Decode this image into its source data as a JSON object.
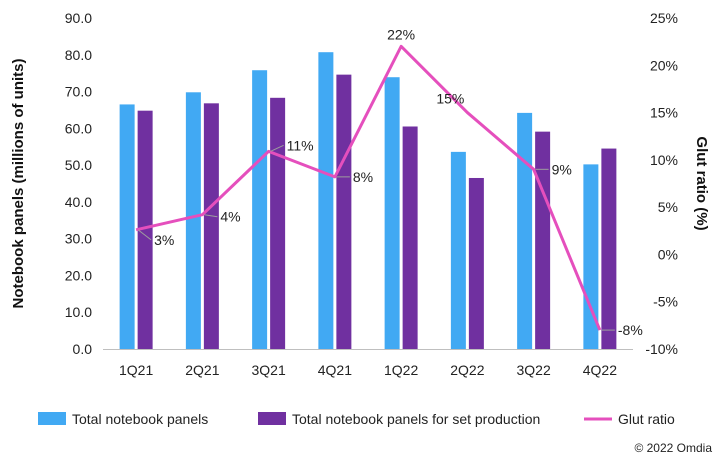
{
  "chart_data": {
    "type": "bar",
    "categories": [
      "1Q21",
      "2Q21",
      "3Q21",
      "4Q21",
      "1Q22",
      "2Q22",
      "3Q22",
      "4Q22"
    ],
    "series": [
      {
        "name": "Total notebook panels",
        "kind": "bar",
        "axis": "left",
        "color": "#41a9f3",
        "values": [
          66.5,
          69.8,
          75.8,
          80.7,
          73.9,
          53.6,
          64.2,
          50.2
        ]
      },
      {
        "name": "Total notebook panels for set production",
        "kind": "bar",
        "axis": "left",
        "color": "#7030a0",
        "values": [
          64.8,
          66.8,
          68.3,
          74.6,
          60.5,
          46.5,
          59.1,
          54.5
        ]
      },
      {
        "name": "Glut ratio",
        "kind": "line",
        "axis": "right",
        "color": "#e54fbd",
        "values": [
          2.6,
          4.2,
          10.9,
          8.2,
          22.0,
          15.0,
          9.0,
          -8.0
        ],
        "labels": [
          "3%",
          "4%",
          "11%",
          "8%",
          "22%",
          "15%",
          "9%",
          "-8%"
        ]
      }
    ],
    "ylabel": "Notebook panels (millions of units)",
    "y2label": "Glut ratio (%)",
    "ylim": [
      0,
      90
    ],
    "y2lim": [
      -10,
      25
    ],
    "yticks": [
      "0.0",
      "10.0",
      "20.0",
      "30.0",
      "40.0",
      "50.0",
      "60.0",
      "70.0",
      "80.0",
      "90.0"
    ],
    "y2ticks": [
      "-10%",
      "-5%",
      "0%",
      "5%",
      "10%",
      "15%",
      "20%",
      "25%"
    ],
    "grid": false,
    "legend_position": "bottom"
  },
  "credit": "© 2022 Omdia"
}
